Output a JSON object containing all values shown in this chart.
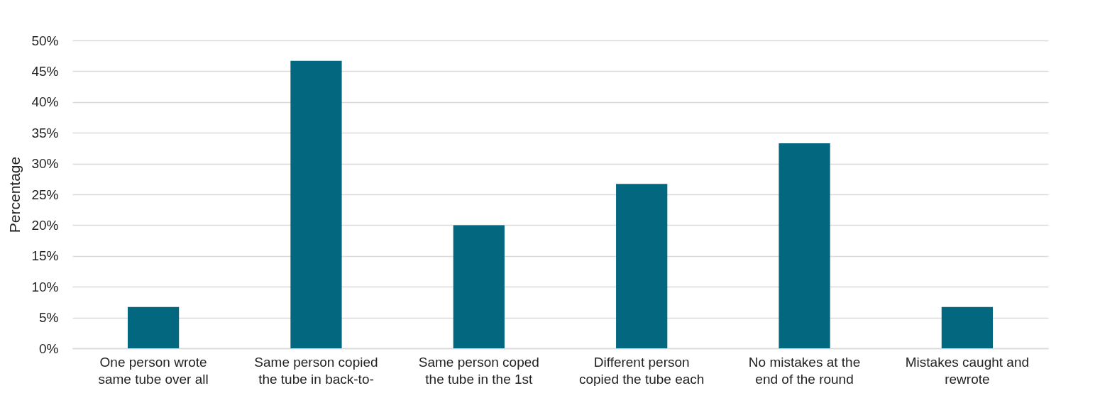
{
  "chart_data": {
    "type": "bar",
    "ylabel": "Percentage",
    "categories": [
      "One person wrote same tube over all",
      "Same person copied the tube in back-to-",
      "Same person coped the tube in the 1st",
      "Different person copied the tube each",
      "No mistakes at the end of the round",
      "Mistakes caught and rewrote"
    ],
    "values": [
      6.7,
      46.7,
      20,
      26.7,
      33.3,
      6.7
    ],
    "color": "#03677f",
    "ylim": [
      0,
      50
    ],
    "yticks": [
      {
        "value": 0,
        "label": "0%"
      },
      {
        "value": 5,
        "label": "5%"
      },
      {
        "value": 10,
        "label": "10%"
      },
      {
        "value": 15,
        "label": "15%"
      },
      {
        "value": 20,
        "label": "20%"
      },
      {
        "value": 25,
        "label": "25%"
      },
      {
        "value": 30,
        "label": "30%"
      },
      {
        "value": 35,
        "label": "35%"
      },
      {
        "value": 40,
        "label": "40%"
      },
      {
        "value": 45,
        "label": "45%"
      },
      {
        "value": 50,
        "label": "50%"
      }
    ],
    "grid": "y"
  }
}
